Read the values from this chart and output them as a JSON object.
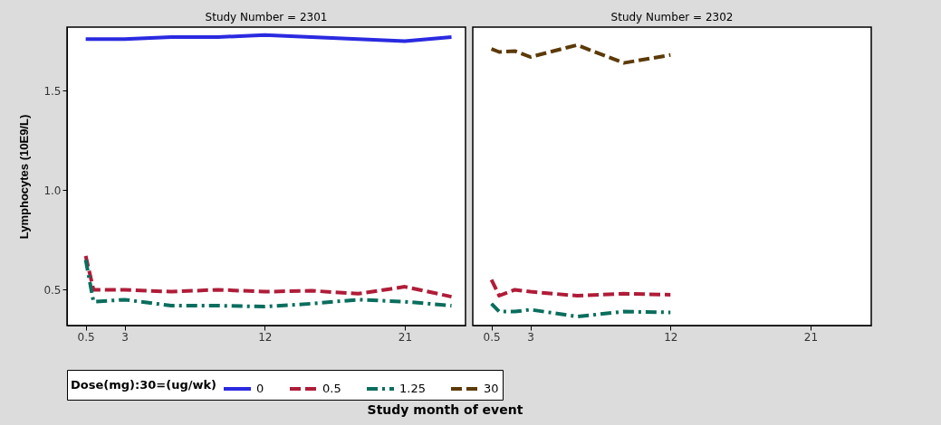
{
  "chart_data": [
    {
      "type": "line",
      "title": "Study Number = 2301",
      "xlabel": "Study month of event",
      "ylabel": "Lymphocytes (10E9/L)",
      "legend_title": "Dose(mg):30=(ug/wk)",
      "legend": "bottom",
      "xlim": [
        -0.7,
        24.9
      ],
      "xticks": [
        0.5,
        3,
        12,
        21
      ],
      "ylim": [
        0.32,
        1.82
      ],
      "yticks": [
        0.5,
        {
          "value": 1,
          "label": "1.0"
        },
        1.5
      ],
      "grid": false,
      "series": [
        {
          "name": "0",
          "color": "#2a2ae0",
          "line_style": "solid",
          "x": [
            0.5,
            2,
            3,
            6,
            9,
            12,
            15,
            18,
            21,
            24
          ],
          "values": [
            1.76,
            1.76,
            1.76,
            1.77,
            1.77,
            1.78,
            1.77,
            1.76,
            1.75,
            1.77
          ]
        },
        {
          "name": "0.5",
          "color": "#b01c38",
          "line_style": "dashed",
          "x": [
            0.5,
            1,
            3,
            6,
            9,
            12,
            15,
            18,
            21,
            24
          ],
          "values": [
            0.67,
            0.5,
            0.5,
            0.49,
            0.5,
            0.49,
            0.495,
            0.48,
            0.515,
            0.465
          ]
        },
        {
          "name": "1.25",
          "color": "#0a6e5e",
          "line_style": "dashdot",
          "x": [
            0.5,
            1,
            2,
            3,
            6,
            9,
            12,
            15,
            18,
            21,
            24
          ],
          "values": [
            0.65,
            0.44,
            0.445,
            0.45,
            0.42,
            0.42,
            0.415,
            0.43,
            0.45,
            0.44,
            0.42
          ]
        }
      ]
    },
    {
      "type": "line",
      "title": "Study Number = 2302",
      "legend": "bottom",
      "tick_labels": "x",
      "xlim": [
        -0.7,
        24.9
      ],
      "xticks": [
        0.5,
        3,
        12,
        21
      ],
      "ylim": [
        0.32,
        1.82
      ],
      "grid": false,
      "series": [
        {
          "name": "0.5",
          "color": "#b01c38",
          "line_style": "dashed",
          "x": [
            0.5,
            1,
            2,
            3,
            6,
            9,
            12
          ],
          "values": [
            0.55,
            0.47,
            0.5,
            0.49,
            0.47,
            0.48,
            0.475
          ]
        },
        {
          "name": "1.25",
          "color": "#0a6e5e",
          "line_style": "dashdot",
          "x": [
            0.5,
            1,
            2,
            3,
            6,
            9,
            12
          ],
          "values": [
            0.43,
            0.39,
            0.39,
            0.4,
            0.365,
            0.39,
            0.386
          ]
        },
        {
          "name": "30",
          "color": "#5c3a06",
          "line_style": "dashed",
          "x": [
            0.5,
            1,
            2,
            3,
            6,
            9,
            12
          ],
          "values": [
            1.71,
            1.695,
            1.7,
            1.67,
            1.73,
            1.64,
            1.68
          ]
        }
      ]
    }
  ]
}
